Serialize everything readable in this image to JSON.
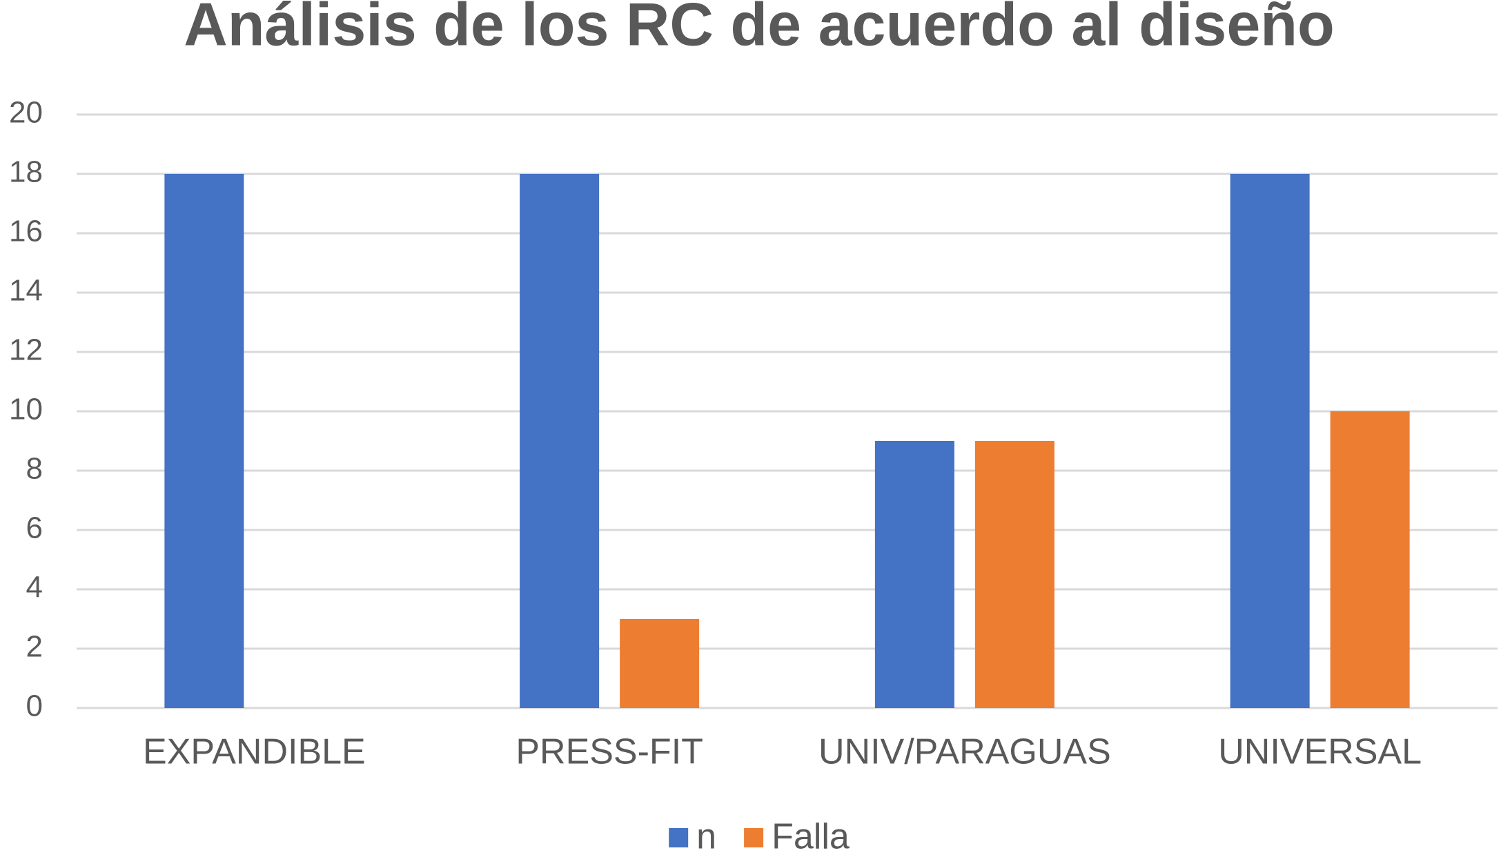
{
  "chart_data": {
    "type": "bar",
    "title": "Análisis de los RC de acuerdo al diseño",
    "categories": [
      "EXPANDIBLE",
      "PRESS-FIT",
      "UNIV/PARAGUAS",
      "UNIVERSAL"
    ],
    "series": [
      {
        "name": "n",
        "color": "#4472c4",
        "values": [
          18,
          18,
          9,
          18
        ]
      },
      {
        "name": "Falla",
        "color": "#ed7d31",
        "values": [
          0,
          3,
          9,
          10
        ]
      }
    ],
    "ylim": [
      0,
      20
    ],
    "yticks": [
      0,
      2,
      4,
      6,
      8,
      10,
      12,
      14,
      16,
      18,
      20
    ],
    "grid": true,
    "legend": "bottom"
  }
}
